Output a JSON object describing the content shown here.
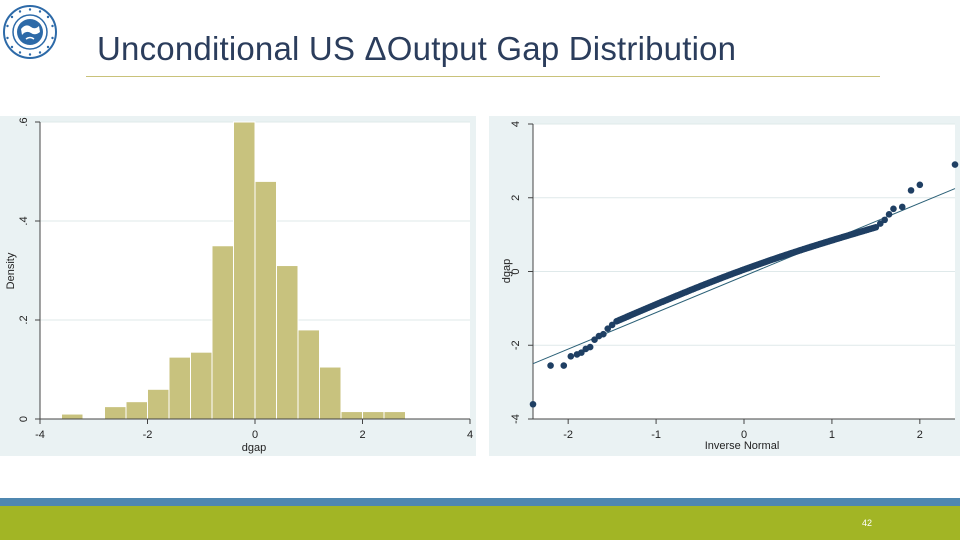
{
  "slide": {
    "title": "Unconditional US ΔOutput Gap Distribution",
    "page_number": "42",
    "colors": {
      "title": "#2b3d5c",
      "rule": "#c9c27a",
      "footer_blue": "#4f87b0",
      "footer_green": "#a2b525"
    },
    "logo_icon": "imf-seal-icon"
  },
  "chart_data": [
    {
      "type": "bar",
      "xlabel": "dgap",
      "ylabel": "Density",
      "xlim": [
        -4,
        4
      ],
      "ylim": [
        0,
        0.6
      ],
      "xticks": [
        -4,
        -2,
        0,
        2,
        4
      ],
      "xtick_labels": [
        "-4",
        "-2",
        "0",
        "2",
        "4"
      ],
      "yticks": [
        0,
        0.2,
        0.4,
        0.6
      ],
      "ytick_labels": [
        "0",
        ".2",
        ".4",
        ".6"
      ],
      "bin_width": 0.4,
      "bins": [
        {
          "x0": -3.6,
          "density": 0.01
        },
        {
          "x0": -3.2,
          "density": 0.0
        },
        {
          "x0": -2.8,
          "density": 0.025
        },
        {
          "x0": -2.4,
          "density": 0.035
        },
        {
          "x0": -2.0,
          "density": 0.06
        },
        {
          "x0": -1.6,
          "density": 0.125
        },
        {
          "x0": -1.2,
          "density": 0.135
        },
        {
          "x0": -0.8,
          "density": 0.35
        },
        {
          "x0": -0.4,
          "density": 0.6
        },
        {
          "x0": 0.0,
          "density": 0.48
        },
        {
          "x0": 0.4,
          "density": 0.31
        },
        {
          "x0": 0.8,
          "density": 0.18
        },
        {
          "x0": 1.2,
          "density": 0.105
        },
        {
          "x0": 1.6,
          "density": 0.015
        },
        {
          "x0": 2.0,
          "density": 0.015
        },
        {
          "x0": 2.4,
          "density": 0.015
        }
      ],
      "bar_color": "#c8c27e",
      "grid": true
    },
    {
      "type": "scatter",
      "xlabel": "Inverse Normal",
      "ylabel": "dgap",
      "xlim": [
        -2.4,
        2.4
      ],
      "ylim": [
        -4,
        4
      ],
      "xticks": [
        -2,
        -1,
        0,
        1,
        2
      ],
      "xtick_labels": [
        "-2",
        "-1",
        "0",
        "1",
        "2"
      ],
      "yticks": [
        -4,
        -2,
        0,
        2,
        4
      ],
      "ytick_labels": [
        "-4",
        "-2",
        "0",
        "2",
        "4"
      ],
      "reference_line": {
        "x": [
          -2.4,
          2.4
        ],
        "y": [
          -2.5,
          2.25
        ]
      },
      "tail_points": {
        "x": [
          -2.4,
          -2.2,
          -2.05,
          -1.97,
          -1.9,
          -1.85,
          -1.8,
          -1.75,
          -1.7,
          -1.65,
          -1.6,
          -1.55,
          -1.5,
          1.55,
          1.6,
          1.65,
          1.7,
          1.8,
          1.9,
          2.0,
          2.4
        ],
        "y": [
          -3.6,
          -2.55,
          -2.55,
          -2.3,
          -2.25,
          -2.2,
          -2.1,
          -2.05,
          -1.85,
          -1.75,
          -1.7,
          -1.55,
          -1.45,
          1.3,
          1.4,
          1.55,
          1.7,
          1.75,
          2.2,
          2.35,
          2.9
        ]
      },
      "body_points": {
        "x_start": -1.45,
        "x_end": 1.5,
        "count": 148,
        "y_at_start": -1.35,
        "y_at_end": 1.2,
        "curve": 0.25
      },
      "point_color": "#1f3f63",
      "line_color": "#2b6077",
      "grid": true
    }
  ]
}
